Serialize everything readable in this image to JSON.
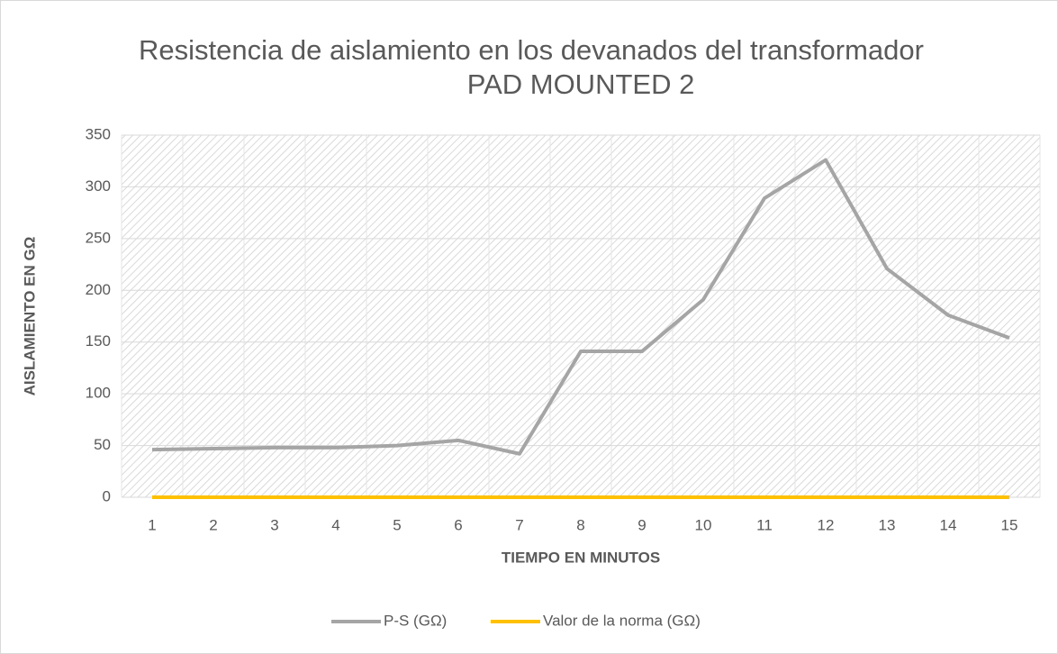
{
  "chart_data": {
    "type": "line",
    "title": [
      "Resistencia de aislamiento en los devanados del transformador",
      "PAD MOUNTED 2"
    ],
    "x_label": "TIEMPO EN MINUTOS",
    "y_label": "AISLAMIENTO EN GΩ",
    "categories": [
      "1",
      "2",
      "3",
      "4",
      "5",
      "6",
      "7",
      "8",
      "9",
      "10",
      "11",
      "12",
      "13",
      "14",
      "15"
    ],
    "series": [
      {
        "name": "P-S (GΩ)",
        "color": "#a5a5a5",
        "values": [
          46,
          47,
          48,
          48,
          50,
          55,
          42,
          141,
          141,
          191,
          289,
          326,
          221,
          176,
          154
        ]
      },
      {
        "name": "Valor de la norma (GΩ)",
        "color": "#ffc000",
        "values": [
          0,
          0,
          0,
          0,
          0,
          0,
          0,
          0,
          0,
          0,
          0,
          0,
          0,
          0,
          0
        ]
      }
    ],
    "ylim": [
      0,
      350
    ],
    "yticks": [
      0,
      50,
      100,
      150,
      200,
      250,
      300,
      350
    ],
    "grid": true,
    "legend": "bottom"
  }
}
